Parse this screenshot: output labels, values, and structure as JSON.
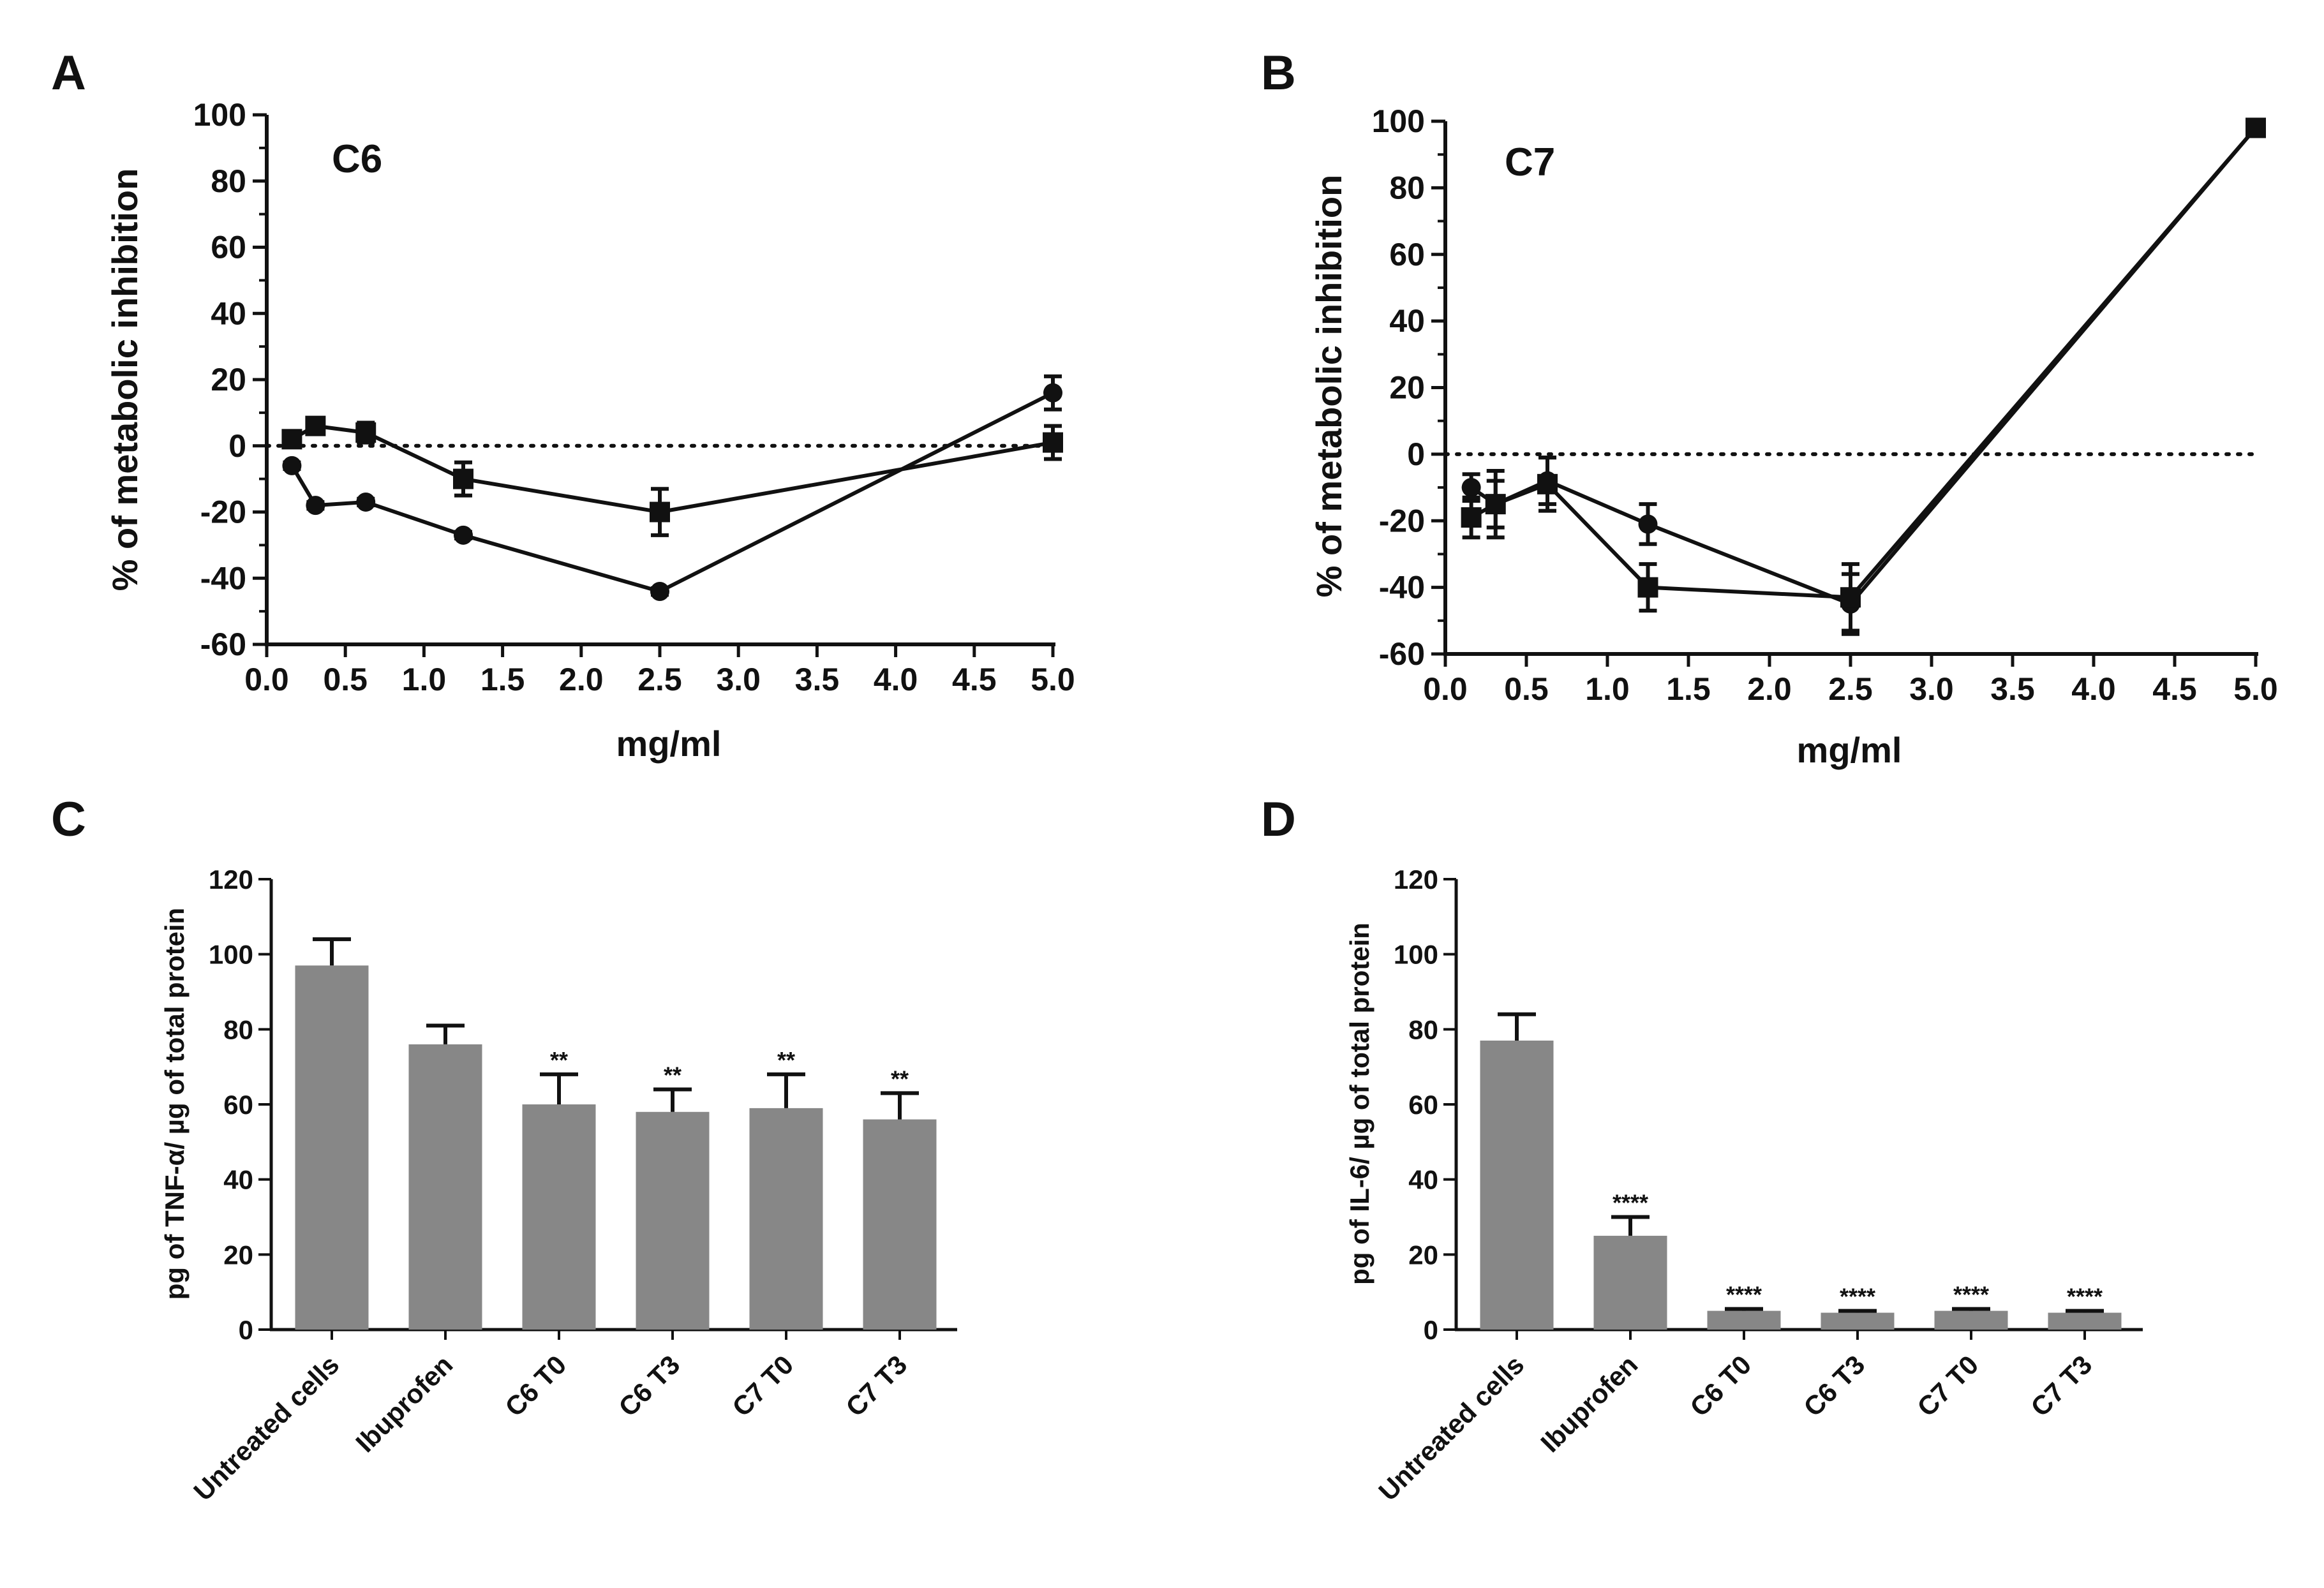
{
  "chart_data": [
    {
      "panel": "A",
      "type": "line",
      "title": "C6",
      "xlabel": "mg/ml",
      "ylabel": "% of metabolic inhibition",
      "xlim": [
        0.0,
        5.0
      ],
      "ylim": [
        -60,
        100
      ],
      "xticks": [
        "0.0",
        "0.5",
        "1.0",
        "1.5",
        "2.0",
        "2.5",
        "3.0",
        "3.5",
        "4.0",
        "4.5",
        "5.0"
      ],
      "yticks": [
        "-60",
        "-40",
        "-20",
        "0",
        "20",
        "40",
        "60",
        "80",
        "100"
      ],
      "reference_line": 0,
      "series": [
        {
          "name": "circle",
          "marker": "circle",
          "x": [
            0.16,
            0.31,
            0.63,
            1.25,
            2.5,
            5.0
          ],
          "y": [
            -6,
            -18,
            -17,
            -27,
            -44,
            16
          ],
          "err": [
            1,
            1,
            1,
            1,
            1,
            5
          ]
        },
        {
          "name": "square",
          "marker": "square",
          "x": [
            0.16,
            0.31,
            0.63,
            1.25,
            2.5,
            5.0
          ],
          "y": [
            2,
            6,
            4,
            -10,
            -20,
            1
          ],
          "err": [
            1,
            2,
            3,
            5,
            7,
            5
          ]
        }
      ]
    },
    {
      "panel": "B",
      "type": "line",
      "title": "C7",
      "xlabel": "mg/ml",
      "ylabel": "% of metabolic inhibition",
      "xlim": [
        0.0,
        5.0
      ],
      "ylim": [
        -60,
        100
      ],
      "xticks": [
        "0.0",
        "0.5",
        "1.0",
        "1.5",
        "2.0",
        "2.5",
        "3.0",
        "3.5",
        "4.0",
        "4.5",
        "5.0"
      ],
      "yticks": [
        "-60",
        "-40",
        "-20",
        "0",
        "20",
        "40",
        "60",
        "80",
        "100"
      ],
      "reference_line": 0,
      "series": [
        {
          "name": "circle",
          "marker": "circle",
          "x": [
            0.16,
            0.31,
            0.63,
            1.25,
            2.5,
            5.0
          ],
          "y": [
            -10,
            -15,
            -8,
            -21,
            -45,
            98
          ],
          "err": [
            4,
            10,
            7,
            6,
            9,
            1
          ]
        },
        {
          "name": "square",
          "marker": "square",
          "x": [
            0.16,
            0.31,
            0.63,
            1.25,
            2.5,
            5.0
          ],
          "y": [
            -19,
            -15,
            -9,
            -40,
            -43,
            98
          ],
          "err": [
            6,
            7,
            8,
            7,
            10,
            1
          ]
        }
      ]
    },
    {
      "panel": "C",
      "type": "bar",
      "ylabel": "pg of TNF-α/ µg of total protein",
      "ylim": [
        0,
        120
      ],
      "yticks": [
        "0",
        "20",
        "40",
        "60",
        "80",
        "100",
        "120"
      ],
      "categories": [
        "Untreated cells",
        "Ibuprofen",
        "C6 T0",
        "C6 T3",
        "C7 T0",
        "C7 T3"
      ],
      "values": [
        97,
        76,
        60,
        58,
        59,
        56
      ],
      "err": [
        7,
        5,
        8,
        6,
        9,
        7
      ],
      "significance": [
        "",
        "",
        "**",
        "**",
        "**",
        "**"
      ]
    },
    {
      "panel": "D",
      "type": "bar",
      "ylabel": "pg of IL-6/ µg of total protein",
      "ylim": [
        0,
        120
      ],
      "yticks": [
        "0",
        "20",
        "40",
        "60",
        "80",
        "100",
        "120"
      ],
      "categories": [
        "Untreated cells",
        "Ibuprofen",
        "C6 T0",
        "C6 T3",
        "C7 T0",
        "C7 T3"
      ],
      "values": [
        77,
        25,
        5,
        4.5,
        5,
        4.5
      ],
      "err": [
        7,
        5,
        0.5,
        0.5,
        0.5,
        0.5
      ],
      "significance": [
        "",
        "****",
        "****",
        "****",
        "****",
        "****"
      ]
    }
  ]
}
